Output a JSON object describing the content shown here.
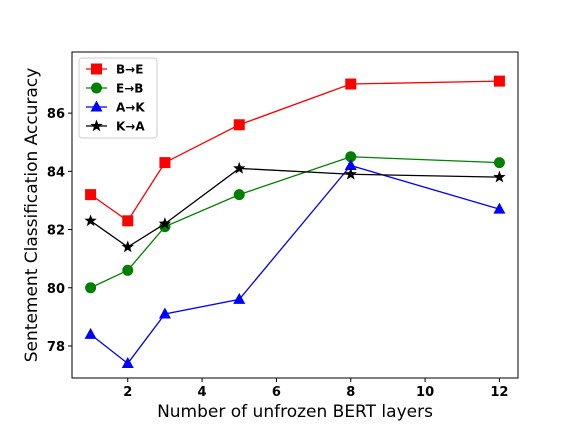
{
  "chart_data": {
    "type": "line",
    "title": "",
    "xlabel": "Number of unfrozen BERT layers",
    "ylabel": "Sentement Classification Accuracy",
    "xlim": [
      0.5,
      12.5
    ],
    "ylim": [
      76.9,
      88.1
    ],
    "xticks": [
      2,
      4,
      6,
      8,
      10,
      12
    ],
    "yticks": [
      78,
      80,
      82,
      84,
      86
    ],
    "grid": false,
    "legend": "upper-left",
    "x": [
      1,
      2,
      3,
      5,
      8,
      12
    ],
    "series": [
      {
        "name": "B→E",
        "color": "#ff0000",
        "marker": "square",
        "values": [
          83.2,
          82.3,
          84.3,
          85.6,
          87.0,
          87.1
        ]
      },
      {
        "name": "E→B",
        "color": "#008000",
        "marker": "circle",
        "values": [
          80.0,
          80.6,
          82.1,
          83.2,
          84.5,
          84.3
        ]
      },
      {
        "name": "A→K",
        "color": "#0000ff",
        "marker": "triangle",
        "values": [
          78.4,
          77.4,
          79.1,
          79.6,
          84.2,
          82.7
        ]
      },
      {
        "name": "K→A",
        "color": "#000000",
        "marker": "star",
        "values": [
          82.3,
          81.4,
          82.2,
          84.1,
          83.9,
          83.8
        ]
      }
    ]
  }
}
